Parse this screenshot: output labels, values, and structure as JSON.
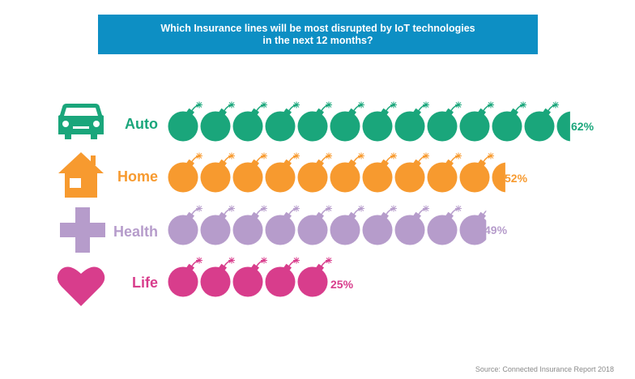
{
  "title": {
    "line1": "Which Insurance lines will be most disrupted by IoT technologies",
    "line2": "in the next 12 months?"
  },
  "source": "Source: Connected Insurance Report 2018",
  "chart_data": {
    "type": "bar",
    "title": "Which Insurance lines will be most disrupted by IoT technologies in the next 12 months?",
    "unit": "%",
    "categories": [
      "Auto",
      "Home",
      "Health",
      "Life"
    ],
    "values": [
      62,
      52,
      49,
      25
    ],
    "value_labels": [
      "62%",
      "52%",
      "49%",
      "25%"
    ],
    "colors": [
      "#1aa67b",
      "#f79a2f",
      "#b69ccb",
      "#d83d8c"
    ],
    "icons": [
      "car-icon",
      "house-icon",
      "plus-icon",
      "heart-icon"
    ],
    "marker": "bomb-icon",
    "percent_per_marker": 5
  }
}
